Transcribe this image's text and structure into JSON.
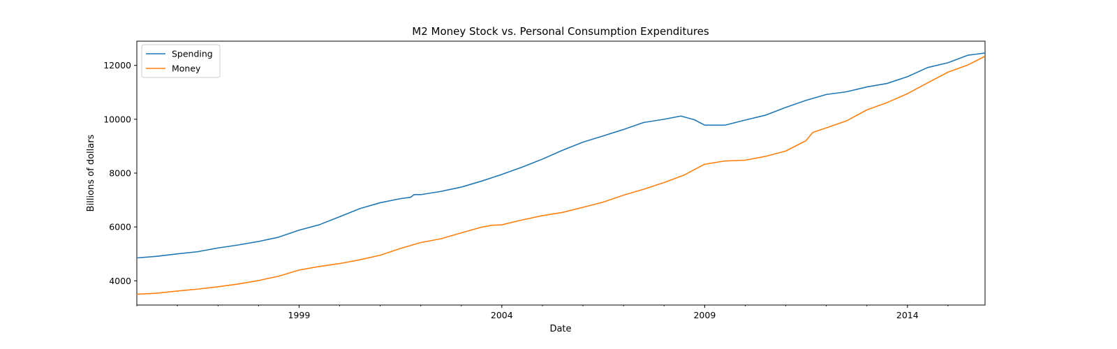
{
  "chart_data": {
    "type": "line",
    "title": "M2 Money Stock vs. Personal Consumption Expenditures",
    "xlabel": "Date",
    "ylabel": "Billions of dollars",
    "xlim": [
      "1995-01-01",
      "2015-12-01"
    ],
    "ylim": [
      3100,
      12900
    ],
    "xticks": [
      "1999",
      "2004",
      "2009",
      "2014"
    ],
    "xtick_dates": [
      "1999-01-01",
      "2004-01-01",
      "2009-01-01",
      "2014-01-01"
    ],
    "yticks": [
      4000,
      6000,
      8000,
      10000,
      12000
    ],
    "grid": false,
    "legend": "top-left",
    "series": [
      {
        "name": "Spending",
        "color": "#1f77b4",
        "points": [
          [
            "1995-01-01",
            4850
          ],
          [
            "1995-07-01",
            4910
          ],
          [
            "1996-01-01",
            5000
          ],
          [
            "1996-07-01",
            5080
          ],
          [
            "1997-01-01",
            5220
          ],
          [
            "1997-07-01",
            5330
          ],
          [
            "1998-01-01",
            5460
          ],
          [
            "1998-07-01",
            5620
          ],
          [
            "1999-01-01",
            5880
          ],
          [
            "1999-07-01",
            6080
          ],
          [
            "2000-01-01",
            6380
          ],
          [
            "2000-07-01",
            6680
          ],
          [
            "2001-01-01",
            6900
          ],
          [
            "2001-07-01",
            7050
          ],
          [
            "2001-10-01",
            7100
          ],
          [
            "2001-11-01",
            7200
          ],
          [
            "2002-01-01",
            7200
          ],
          [
            "2002-07-01",
            7320
          ],
          [
            "2003-01-01",
            7480
          ],
          [
            "2003-07-01",
            7700
          ],
          [
            "2004-01-01",
            7950
          ],
          [
            "2004-07-01",
            8220
          ],
          [
            "2005-01-01",
            8520
          ],
          [
            "2005-07-01",
            8850
          ],
          [
            "2006-01-01",
            9150
          ],
          [
            "2006-07-01",
            9380
          ],
          [
            "2007-01-01",
            9620
          ],
          [
            "2007-07-01",
            9880
          ],
          [
            "2008-01-01",
            10000
          ],
          [
            "2008-06-01",
            10120
          ],
          [
            "2008-10-01",
            9980
          ],
          [
            "2009-01-01",
            9780
          ],
          [
            "2009-07-01",
            9780
          ],
          [
            "2010-01-01",
            9970
          ],
          [
            "2010-07-01",
            10150
          ],
          [
            "2011-01-01",
            10440
          ],
          [
            "2011-07-01",
            10700
          ],
          [
            "2012-01-01",
            10920
          ],
          [
            "2012-07-01",
            11020
          ],
          [
            "2013-01-01",
            11200
          ],
          [
            "2013-07-01",
            11330
          ],
          [
            "2014-01-01",
            11580
          ],
          [
            "2014-07-01",
            11920
          ],
          [
            "2015-01-01",
            12100
          ],
          [
            "2015-07-01",
            12380
          ],
          [
            "2015-12-01",
            12460
          ]
        ]
      },
      {
        "name": "Money",
        "color": "#ff7f0e",
        "points": [
          [
            "1995-01-01",
            3500
          ],
          [
            "1995-07-01",
            3540
          ],
          [
            "1996-01-01",
            3620
          ],
          [
            "1996-07-01",
            3690
          ],
          [
            "1997-01-01",
            3780
          ],
          [
            "1997-07-01",
            3880
          ],
          [
            "1998-01-01",
            4010
          ],
          [
            "1998-07-01",
            4170
          ],
          [
            "1999-01-01",
            4400
          ],
          [
            "1999-07-01",
            4530
          ],
          [
            "2000-01-01",
            4640
          ],
          [
            "2000-07-01",
            4780
          ],
          [
            "2001-01-01",
            4950
          ],
          [
            "2001-07-01",
            5200
          ],
          [
            "2002-01-01",
            5420
          ],
          [
            "2002-07-01",
            5560
          ],
          [
            "2003-01-01",
            5780
          ],
          [
            "2003-07-01",
            5990
          ],
          [
            "2003-10-01",
            6060
          ],
          [
            "2004-01-01",
            6080
          ],
          [
            "2004-07-01",
            6260
          ],
          [
            "2005-01-01",
            6420
          ],
          [
            "2005-07-01",
            6540
          ],
          [
            "2006-01-01",
            6730
          ],
          [
            "2006-07-01",
            6920
          ],
          [
            "2007-01-01",
            7180
          ],
          [
            "2007-07-01",
            7400
          ],
          [
            "2008-01-01",
            7650
          ],
          [
            "2008-07-01",
            7930
          ],
          [
            "2008-11-01",
            8200
          ],
          [
            "2009-01-01",
            8330
          ],
          [
            "2009-07-01",
            8450
          ],
          [
            "2010-01-01",
            8480
          ],
          [
            "2010-07-01",
            8620
          ],
          [
            "2011-01-01",
            8820
          ],
          [
            "2011-07-01",
            9200
          ],
          [
            "2011-09-01",
            9510
          ],
          [
            "2012-01-01",
            9680
          ],
          [
            "2012-07-01",
            9940
          ],
          [
            "2013-01-01",
            10350
          ],
          [
            "2013-07-01",
            10620
          ],
          [
            "2014-01-01",
            10950
          ],
          [
            "2014-07-01",
            11350
          ],
          [
            "2015-01-01",
            11750
          ],
          [
            "2015-07-01",
            12020
          ],
          [
            "2015-12-01",
            12340
          ]
        ]
      }
    ]
  }
}
